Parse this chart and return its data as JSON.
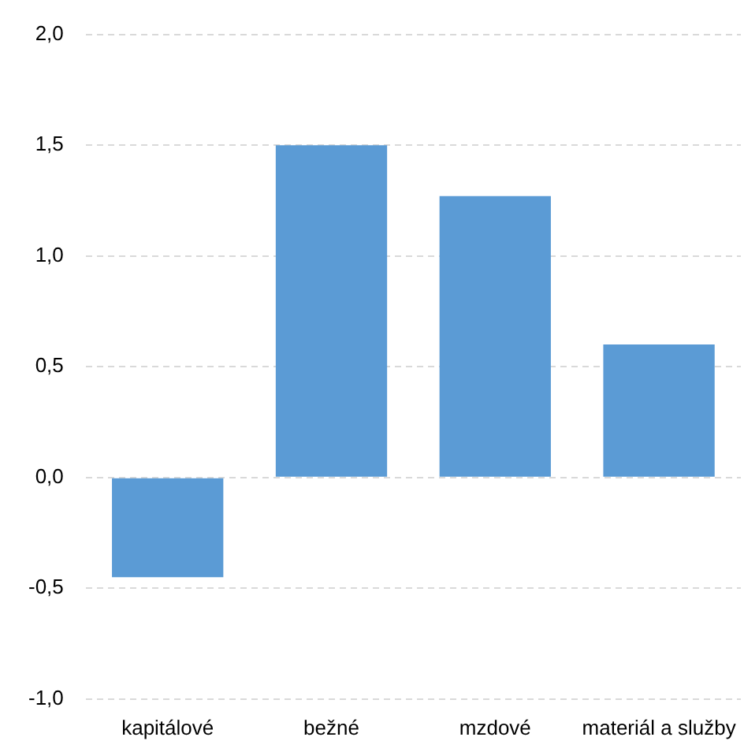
{
  "chart_data": {
    "type": "bar",
    "categories": [
      "kapitálové",
      "bežné",
      "mzdové",
      "materiál a služby"
    ],
    "values": [
      -0.45,
      1.5,
      1.27,
      0.6
    ],
    "color": "#5b9bd5",
    "ylim": [
      -1,
      2
    ],
    "yticks": [
      {
        "value": -1,
        "label": "-1,0"
      },
      {
        "value": -0.5,
        "label": "-0,5"
      },
      {
        "value": 0,
        "label": "0,0"
      },
      {
        "value": 0.5,
        "label": "0,5"
      },
      {
        "value": 1,
        "label": "1,0"
      },
      {
        "value": 1.5,
        "label": "1,5"
      },
      {
        "value": 2,
        "label": "2,0"
      }
    ],
    "grid": "y",
    "legend": false
  }
}
